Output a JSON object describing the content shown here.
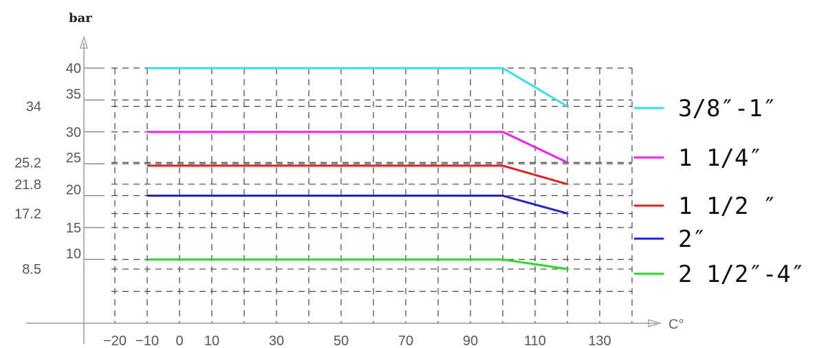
{
  "chart_data": {
    "type": "line",
    "title": "",
    "ylabel": "bar",
    "xlabel": "C°",
    "x_ticks": [
      -20,
      -10,
      0,
      10,
      30,
      50,
      70,
      90,
      110,
      130
    ],
    "y_ticks_major": [
      40,
      35,
      30,
      25,
      20,
      15,
      10
    ],
    "y_ticks_minor": [
      34,
      25.2,
      21.8,
      17.2,
      8.5
    ],
    "xlim": [
      -20,
      130
    ],
    "ylim": [
      0,
      40
    ],
    "grid": true,
    "legend_position": "right",
    "series": [
      {
        "name": "3/8″-1″",
        "color": "#33e0e8",
        "x": [
          -10,
          100,
          120
        ],
        "y": [
          40,
          40,
          34
        ]
      },
      {
        "name": "1 1/4″",
        "color": "#ee22ee",
        "x": [
          -10,
          100,
          120
        ],
        "y": [
          30,
          30,
          25.2
        ]
      },
      {
        "name": "1 1/2 ″",
        "color": "#dd2222",
        "x": [
          -10,
          100,
          120
        ],
        "y": [
          24.7,
          24.7,
          21.8
        ]
      },
      {
        "name": "2″",
        "color": "#2222cc",
        "x": [
          -10,
          100,
          120
        ],
        "y": [
          20,
          20,
          17.2
        ]
      },
      {
        "name": "2 1/2″-4″",
        "color": "#22dd22",
        "x": [
          -10,
          100,
          120
        ],
        "y": [
          10,
          10,
          8.5
        ]
      }
    ]
  }
}
